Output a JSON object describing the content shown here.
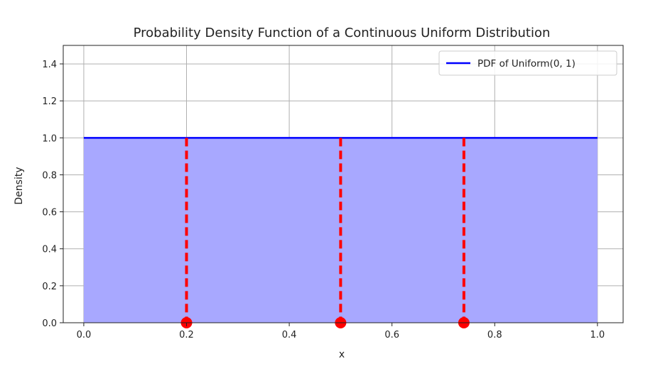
{
  "chart_data": {
    "type": "area",
    "title": "Probability Density Function of a Continuous Uniform Distribution",
    "xlabel": "x",
    "ylabel": "Density",
    "xlim": [
      -0.04,
      1.05
    ],
    "ylim": [
      0.0,
      1.5
    ],
    "x_ticks": [
      0.0,
      0.2,
      0.4,
      0.6,
      0.8,
      1.0
    ],
    "x_tick_labels": [
      "0.0",
      "0.2",
      "0.4",
      "0.6",
      "0.8",
      "1.0"
    ],
    "y_ticks": [
      0.0,
      0.2,
      0.4,
      0.6,
      0.8,
      1.0,
      1.2,
      1.4
    ],
    "y_tick_labels": [
      "0.0",
      "0.2",
      "0.4",
      "0.6",
      "0.8",
      "1.0",
      "1.2",
      "1.4"
    ],
    "grid": true,
    "legend_placement": "top-right",
    "series": [
      {
        "name": "PDF of Uniform(0, 1)",
        "x": [
          0.0,
          1.0
        ],
        "y": [
          1.0,
          1.0
        ],
        "color": "#0000ff",
        "fill_color": "#a8a8ff"
      }
    ],
    "sample_points": {
      "x": [
        0.2,
        0.5,
        0.74
      ],
      "y": [
        0.0,
        0.0,
        0.0
      ],
      "line_top": 1.0,
      "color": "#ff0000",
      "line_style": "dashed"
    }
  }
}
